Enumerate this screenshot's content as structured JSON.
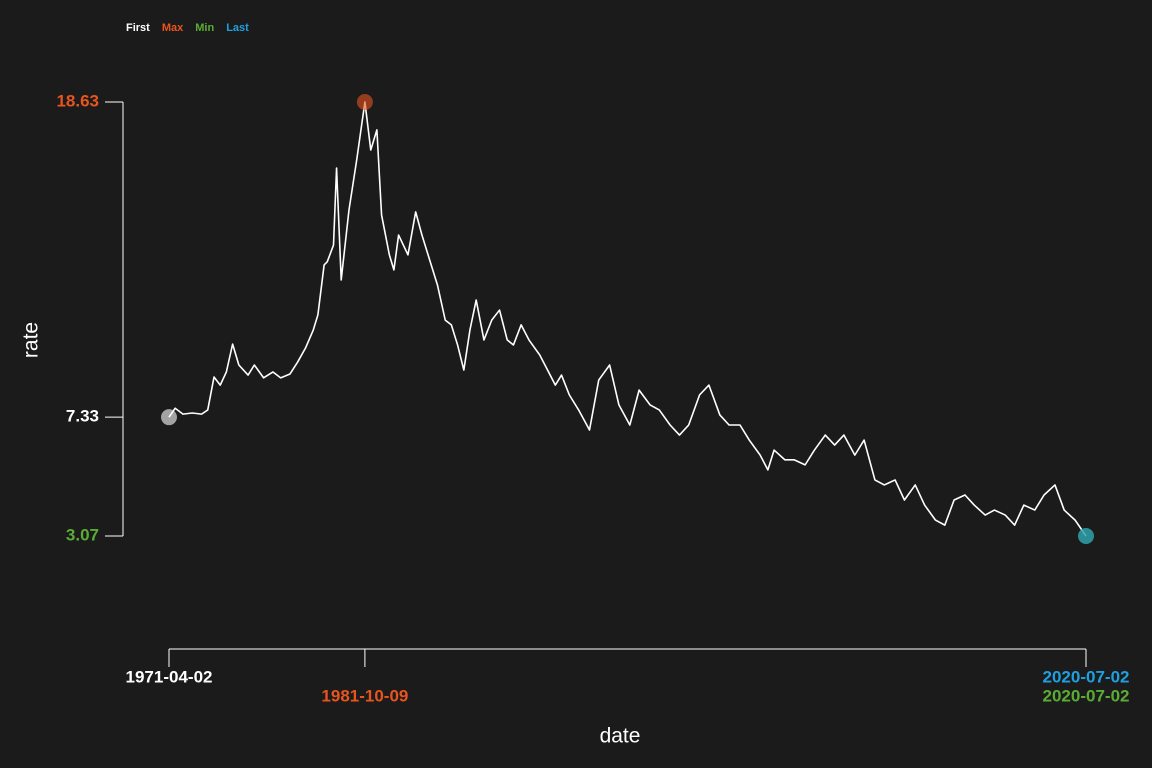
{
  "chart_data": {
    "type": "line",
    "xlabel": "date",
    "ylabel": "rate",
    "color": "#ffffff",
    "xlim": [
      "1971-04-02",
      "2020-07-02"
    ],
    "ylim": [
      3.07,
      18.63
    ],
    "x": [
      "1971-04-02",
      "1971-08-01",
      "1972-01-01",
      "1972-07-01",
      "1973-01-01",
      "1973-05-01",
      "1973-09-01",
      "1974-01-01",
      "1974-05-01",
      "1974-09-01",
      "1975-01-01",
      "1975-07-01",
      "1975-11-01",
      "1976-05-01",
      "1976-11-01",
      "1977-04-01",
      "1977-10-01",
      "1978-03-01",
      "1978-08-01",
      "1979-01-01",
      "1979-04-01",
      "1979-08-01",
      "1979-10-01",
      "1980-02-01",
      "1980-04-01",
      "1980-07-01",
      "1980-12-01",
      "1981-05-01",
      "1981-10-09",
      "1982-02-01",
      "1982-06-01",
      "1982-09-01",
      "1983-02-01",
      "1983-05-01",
      "1983-08-01",
      "1984-02-01",
      "1984-07-01",
      "1984-11-01",
      "1985-04-01",
      "1985-09-01",
      "1986-02-01",
      "1986-06-01",
      "1986-10-01",
      "1987-02-01",
      "1987-06-01",
      "1987-10-01",
      "1988-03-01",
      "1988-08-01",
      "1989-01-01",
      "1989-06-01",
      "1989-10-01",
      "1990-03-01",
      "1990-08-01",
      "1991-03-01",
      "1991-08-01",
      "1992-01-01",
      "1992-05-01",
      "1992-10-01",
      "1993-04-01",
      "1993-11-01",
      "1994-05-01",
      "1994-12-01",
      "1995-06-01",
      "1996-01-01",
      "1996-07-01",
      "1997-02-01",
      "1997-08-01",
      "1998-03-01",
      "1998-09-01",
      "1999-03-01",
      "1999-10-01",
      "2000-04-01",
      "2000-11-01",
      "2001-05-01",
      "2001-12-01",
      "2002-06-01",
      "2003-01-01",
      "2003-06-01",
      "2003-10-01",
      "2004-05-01",
      "2004-11-01",
      "2005-06-01",
      "2005-12-01",
      "2006-07-01",
      "2007-01-01",
      "2007-07-01",
      "2008-02-01",
      "2008-08-01",
      "2009-03-01",
      "2009-09-01",
      "2010-04-01",
      "2010-10-01",
      "2011-05-01",
      "2011-11-01",
      "2012-06-01",
      "2012-12-01",
      "2013-06-01",
      "2014-01-01",
      "2014-07-01",
      "2015-02-01",
      "2015-08-01",
      "2016-03-01",
      "2016-09-01",
      "2017-03-01",
      "2017-10-01",
      "2018-04-01",
      "2018-11-01",
      "2019-05-01",
      "2019-12-01",
      "2020-07-02"
    ],
    "values": [
      7.33,
      7.65,
      7.44,
      7.48,
      7.44,
      7.59,
      8.77,
      8.48,
      8.95,
      9.95,
      9.2,
      8.84,
      9.2,
      8.74,
      8.95,
      8.74,
      8.88,
      9.31,
      9.81,
      10.46,
      11.0,
      12.79,
      12.9,
      13.5,
      16.26,
      12.25,
      14.76,
      16.55,
      18.63,
      16.91,
      17.63,
      14.58,
      13.15,
      12.61,
      13.86,
      13.15,
      14.69,
      13.86,
      12.97,
      12.07,
      10.81,
      10.64,
      9.92,
      9.02,
      10.46,
      11.53,
      10.1,
      10.81,
      11.17,
      10.1,
      9.92,
      10.64,
      10.1,
      9.56,
      9.02,
      8.48,
      8.84,
      8.13,
      7.59,
      6.87,
      8.66,
      9.2,
      7.77,
      7.05,
      8.3,
      7.77,
      7.59,
      7.05,
      6.69,
      7.05,
      8.13,
      8.48,
      7.41,
      7.05,
      7.05,
      6.51,
      5.97,
      5.44,
      6.15,
      5.8,
      5.8,
      5.62,
      6.15,
      6.69,
      6.33,
      6.69,
      5.97,
      6.51,
      5.08,
      4.9,
      5.08,
      4.36,
      4.9,
      4.18,
      3.64,
      3.46,
      4.36,
      4.54,
      4.18,
      3.82,
      4.0,
      3.82,
      3.46,
      4.18,
      4.0,
      4.54,
      4.9,
      4.0,
      3.64,
      3.07
    ],
    "highlights": [
      {
        "name": "First",
        "color": "#ffffff",
        "x": "1971-04-02",
        "y": 7.33
      },
      {
        "name": "Max",
        "color": "#e8541e",
        "x": "1981-10-09",
        "y": 18.63
      },
      {
        "name": "Min",
        "color": "#5aad34",
        "x": "2020-07-02",
        "y": 3.07
      },
      {
        "name": "Last",
        "color": "#1ea0e0",
        "x": "2020-07-02",
        "y": 3.07
      }
    ]
  }
}
